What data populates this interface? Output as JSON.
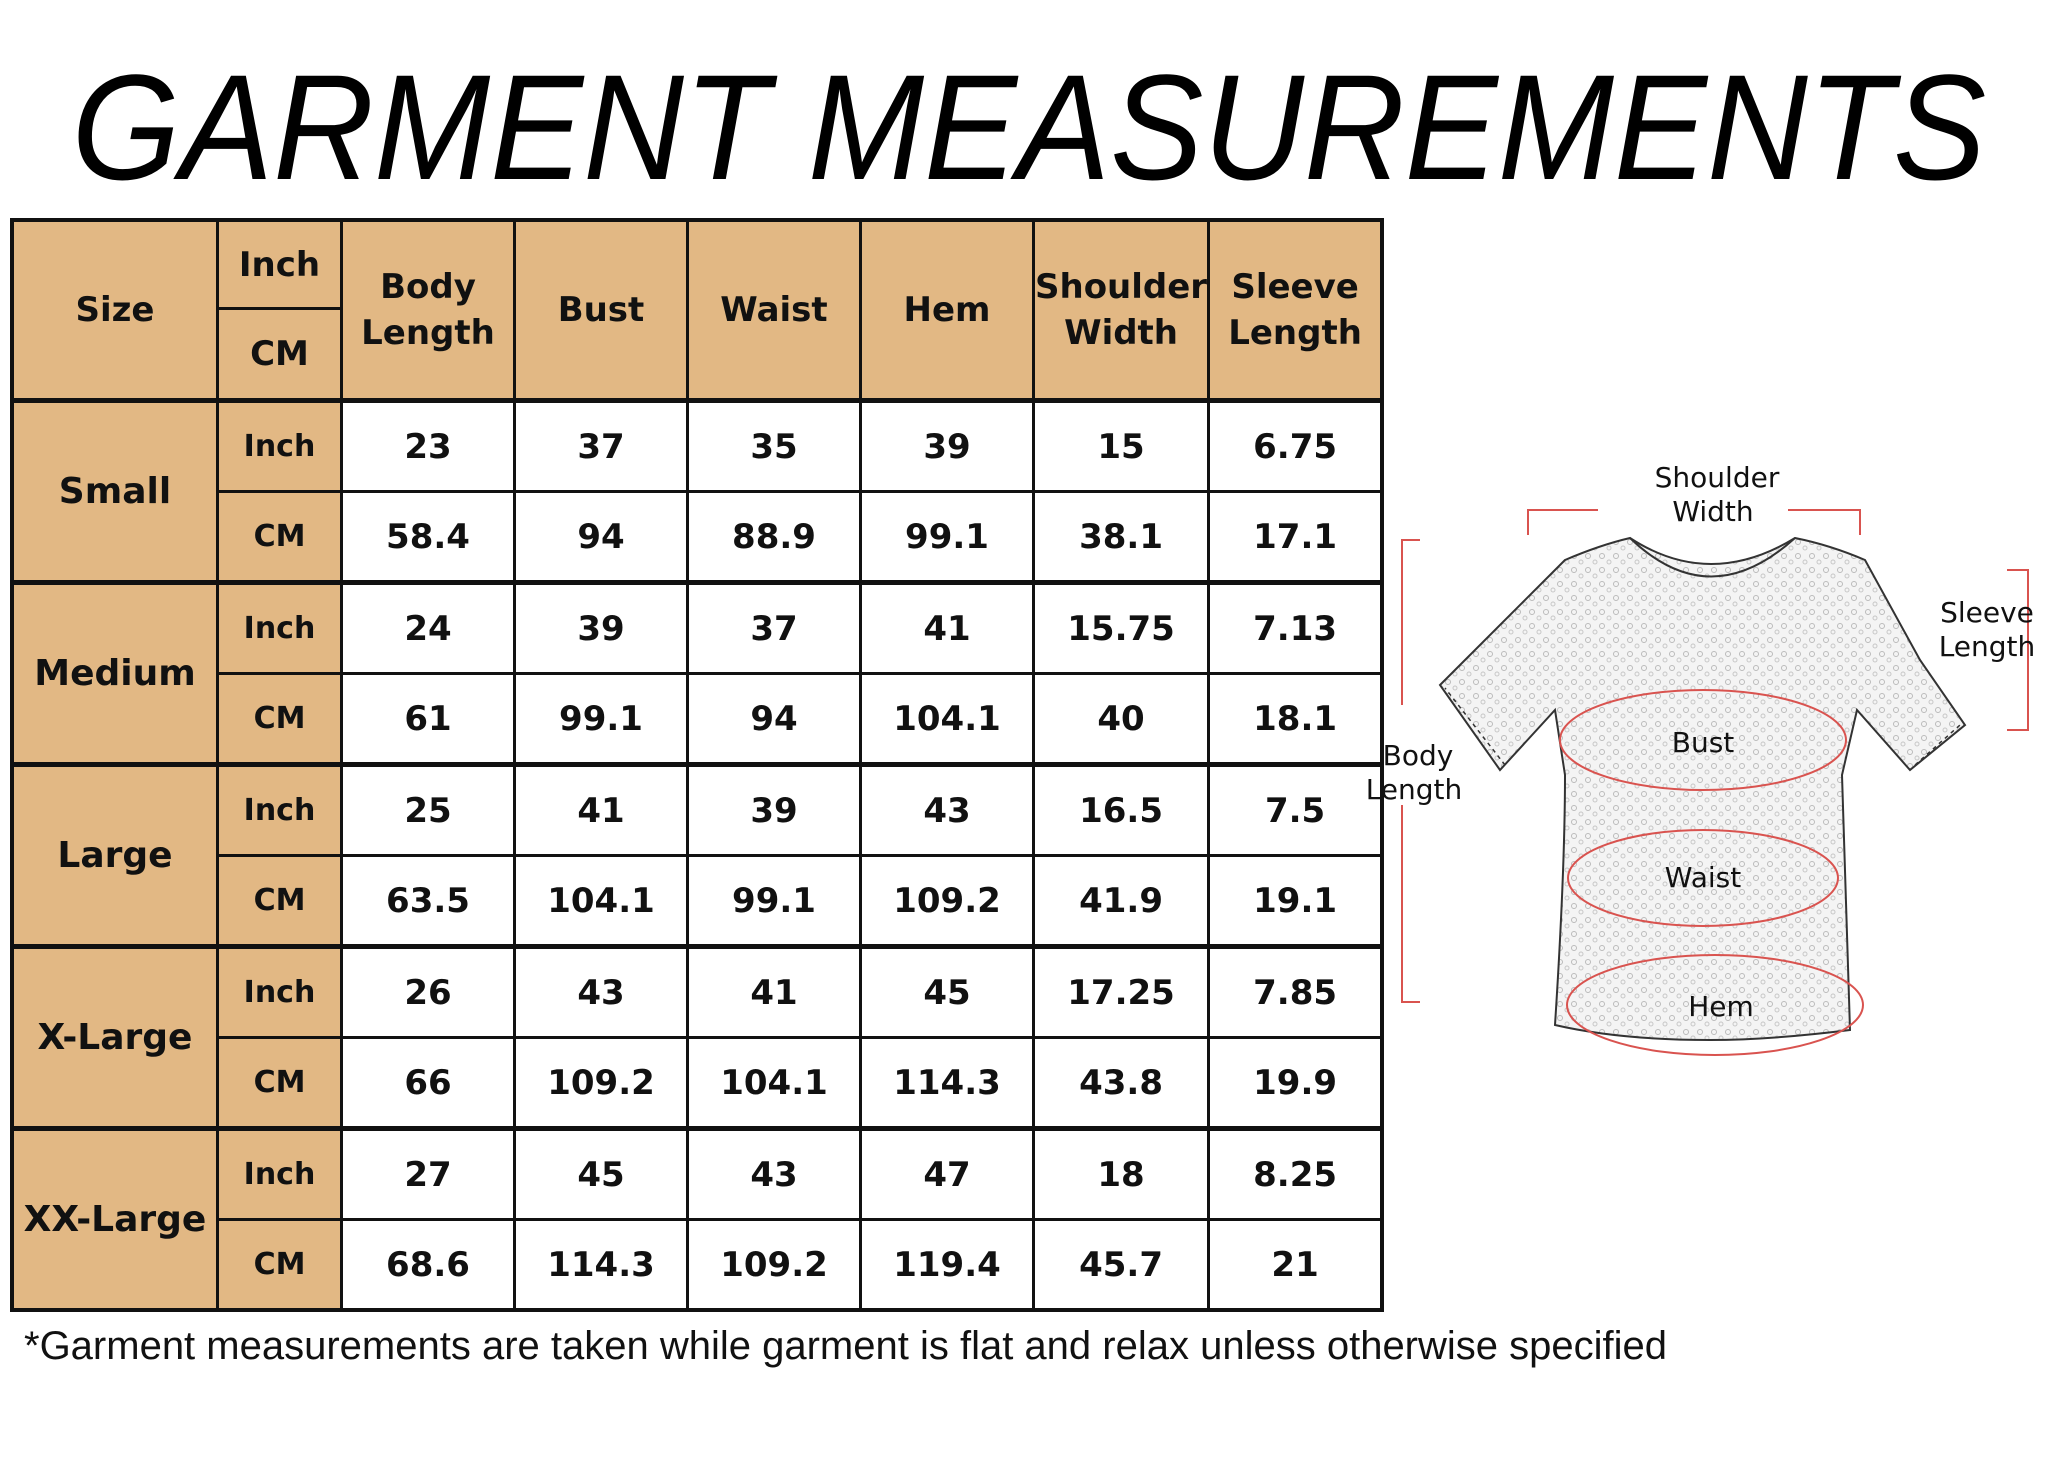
{
  "title": "GARMENT MEASUREMENTS",
  "table": {
    "headers": {
      "size": "Size",
      "unit_top": "Inch",
      "unit_bottom": "CM",
      "columns": [
        [
          "Body",
          "Length"
        ],
        [
          "Bust"
        ],
        [
          "Waist"
        ],
        [
          "Hem"
        ],
        [
          "Shoulder",
          "Width"
        ],
        [
          "Sleeve",
          "Length"
        ]
      ]
    },
    "unit_labels": {
      "inch": "Inch",
      "cm": "CM"
    },
    "rows": [
      {
        "size": "Small",
        "inch": [
          "23",
          "37",
          "35",
          "39",
          "15",
          "6.75"
        ],
        "cm": [
          "58.4",
          "94",
          "88.9",
          "99.1",
          "38.1",
          "17.1"
        ]
      },
      {
        "size": "Medium",
        "inch": [
          "24",
          "39",
          "37",
          "41",
          "15.75",
          "7.13"
        ],
        "cm": [
          "61",
          "99.1",
          "94",
          "104.1",
          "40",
          "18.1"
        ]
      },
      {
        "size": "Large",
        "inch": [
          "25",
          "41",
          "39",
          "43",
          "16.5",
          "7.5"
        ],
        "cm": [
          "63.5",
          "104.1",
          "99.1",
          "109.2",
          "41.9",
          "19.1"
        ]
      },
      {
        "size": "X-Large",
        "inch": [
          "26",
          "43",
          "41",
          "45",
          "17.25",
          "7.85"
        ],
        "cm": [
          "66",
          "109.2",
          "104.1",
          "114.3",
          "43.8",
          "19.9"
        ]
      },
      {
        "size": "XX-Large",
        "inch": [
          "27",
          "45",
          "43",
          "47",
          "18",
          "8.25"
        ],
        "cm": [
          "68.6",
          "114.3",
          "109.2",
          "119.4",
          "45.7",
          "21"
        ]
      }
    ]
  },
  "diagram": {
    "shoulder_width": [
      "Shoulder",
      "Width"
    ],
    "sleeve_length": [
      "Sleeve",
      "Length"
    ],
    "body_length": [
      "Body",
      "Length"
    ],
    "bust": "Bust",
    "waist": "Waist",
    "hem": "Hem"
  },
  "colors": {
    "header_bg": "#e2b884",
    "measure_line": "#d9534f"
  },
  "footnote": "*Garment measurements are taken while garment is flat and relax unless otherwise specified"
}
